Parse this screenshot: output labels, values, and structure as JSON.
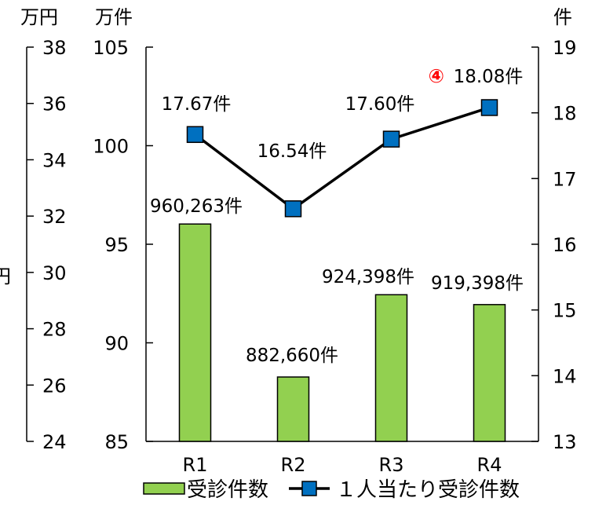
{
  "chart_data": {
    "type": "bar",
    "categories": [
      "R1",
      "R2",
      "R3",
      "R4"
    ],
    "series": [
      {
        "name": "受診件数",
        "type": "bar",
        "axis": "left",
        "values": [
          96.0263,
          88.266,
          92.4398,
          91.9398
        ],
        "labels": [
          "960,263件",
          "882,660件",
          "924,398件",
          "919,398件"
        ],
        "color": "#92d050"
      },
      {
        "name": "１人当たり受診件数",
        "type": "line",
        "axis": "right",
        "values": [
          17.67,
          16.54,
          17.6,
          18.08
        ],
        "labels": [
          "17.67件",
          "16.54件",
          "17.60件",
          "18.08件"
        ],
        "color": "#0070c0"
      }
    ],
    "axes": {
      "far_left": {
        "unit": "万円",
        "range": [
          24,
          38
        ],
        "ticks": [
          "24",
          "26",
          "28",
          "30",
          "32",
          "34",
          "36",
          "38"
        ],
        "partial_label": "円"
      },
      "left": {
        "unit": "万件",
        "range": [
          85,
          105
        ],
        "ticks": [
          "85",
          "90",
          "95",
          "100",
          "105"
        ]
      },
      "right": {
        "unit": "件",
        "range": [
          13,
          19
        ],
        "ticks": [
          "13",
          "14",
          "15",
          "16",
          "17",
          "18",
          "19"
        ]
      }
    },
    "annotation": {
      "marker": "④",
      "color": "#ff0000",
      "point_index": 3
    },
    "legend": {
      "placement": "bottom",
      "entries": [
        "受診件数",
        "１人当たり受診件数"
      ]
    },
    "grid": false
  }
}
